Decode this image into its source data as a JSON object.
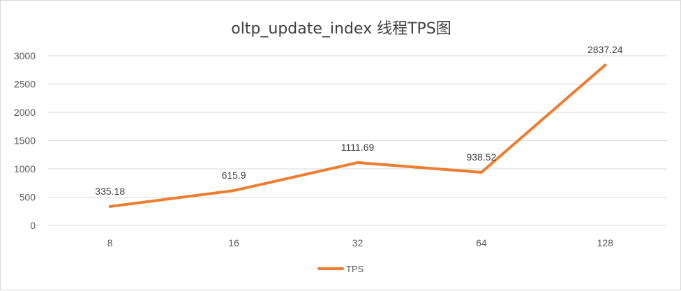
{
  "chart_data": {
    "type": "line",
    "title": "oltp_update_index 线程TPS图",
    "xlabel": "",
    "ylabel": "",
    "categories": [
      "8",
      "16",
      "32",
      "64",
      "128"
    ],
    "series": [
      {
        "name": "TPS",
        "values": [
          335.18,
          615.9,
          1111.69,
          938.52,
          2837.24
        ],
        "labels": [
          "335.18",
          "615.9",
          "1111.69",
          "938.52",
          "2837.24"
        ],
        "color": "#ED7D31"
      }
    ],
    "ylim": [
      0,
      3000
    ],
    "yticks": [
      "0",
      "500",
      "1000",
      "1500",
      "2000",
      "2500",
      "3000"
    ],
    "grid": true,
    "gridColor": "#d9d9d9",
    "legend": "bottom"
  }
}
